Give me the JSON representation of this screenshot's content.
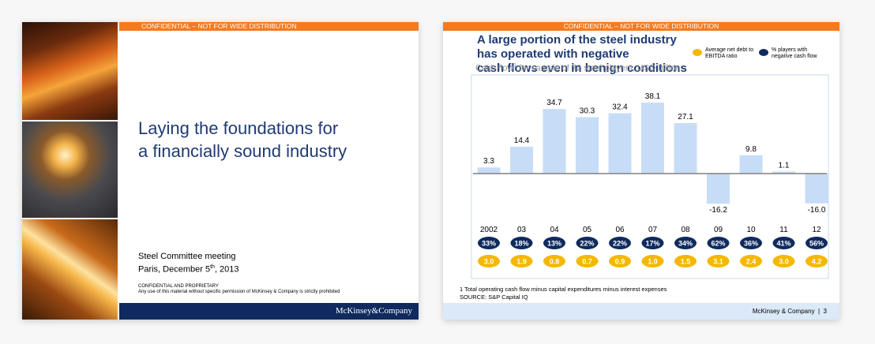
{
  "slide1": {
    "confidential_bar": "CONFIDENTIAL – NOT FOR WIDE DISTRIBUTION",
    "title_line1": "Laying the foundations for",
    "title_line2": "a financially sound industry",
    "meeting_line1": "Steel Committee meeting",
    "meeting_line2_prefix": "Paris, December 5",
    "meeting_line2_sup": "th",
    "meeting_line2_suffix": ", 2013",
    "conf_line1": "CONFIDENTIAL AND PROPRIETARY",
    "conf_line2": "Any use of this material without specific permission of McKinsey & Company is strictly prohibited",
    "brand": "McKinsey&Company"
  },
  "slide2": {
    "confidential_bar": "CONFIDENTIAL – NOT FOR WIDE DISTRIBUTION",
    "title_line1": "A large portion of the steel industry has operated with negative",
    "title_line2": "cash flows even in benign conditions",
    "legend_yellow": "Average net debt to EBITDA ratio",
    "legend_navy": "% players with negative cash flow",
    "subtitle_prefix": "Cash flow",
    "subtitle_sup": "1",
    "subtitle_suffix": " for sample of 72 steel players, USD billion",
    "footnote_line1": "1 Total operating cash flow minus capital expenditures minus interest expenses",
    "footnote_line2": "SOURCE: S&P Capital IQ",
    "footer_brand": "McKinsey & Company",
    "page_number": "3"
  },
  "colors": {
    "orange": "#f47a20",
    "navy": "#0f2a5e",
    "title_blue": "#1f3b73",
    "bar": "#c7ddf7",
    "yellow": "#f5b800",
    "footer_light": "#dbe9f9"
  },
  "chart_data": {
    "type": "bar",
    "categories": [
      "2002",
      "03",
      "04",
      "05",
      "06",
      "07",
      "08",
      "09",
      "10",
      "11",
      "12"
    ],
    "values": [
      3.3,
      14.4,
      34.7,
      30.3,
      32.4,
      38.1,
      27.1,
      -16.2,
      9.8,
      1.1,
      -16.0
    ],
    "value_labels": [
      "3.3",
      "14.4",
      "34.7",
      "30.3",
      "32.4",
      "38.1",
      "27.1",
      "-16.2",
      "9.8",
      "1.1",
      "-16.0"
    ],
    "ylim": [
      -20,
      40
    ],
    "pct_negative_cash_flow": [
      "33%",
      "18%",
      "13%",
      "22%",
      "22%",
      "17%",
      "34%",
      "62%",
      "36%",
      "41%",
      "56%"
    ],
    "net_debt_to_ebitda": [
      "3.0",
      "1.9",
      "0.8",
      "0.7",
      "0.9",
      "1.0",
      "1.5",
      "3.1",
      "2.4",
      "3.0",
      "4.2"
    ]
  }
}
